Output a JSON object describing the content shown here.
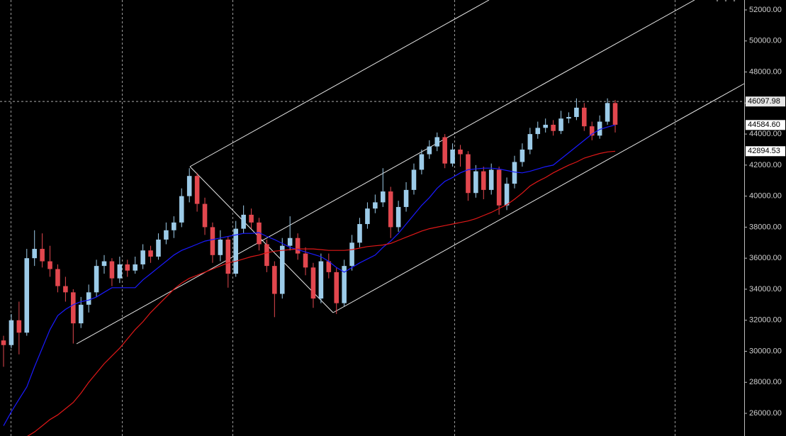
{
  "chart_data": {
    "type": "candlestick",
    "ylim": [
      24540,
      52640
    ],
    "yticks": [
      {
        "value": 26000,
        "label": "26000.00"
      },
      {
        "value": 28000,
        "label": "28000.00"
      },
      {
        "value": 30000,
        "label": "30000.00"
      },
      {
        "value": 32000,
        "label": "32000.00"
      },
      {
        "value": 34000,
        "label": "34000.00"
      },
      {
        "value": 36000,
        "label": "36000.00"
      },
      {
        "value": 38000,
        "label": "38000.00"
      },
      {
        "value": 40000,
        "label": "40000.00"
      },
      {
        "value": 42000,
        "label": "42000.00"
      },
      {
        "value": 44000,
        "label": "44000.00"
      },
      {
        "value": 46000,
        "label": "46000.00"
      },
      {
        "value": 48000,
        "label": "48000.00"
      },
      {
        "value": 50000,
        "label": "50000.00"
      },
      {
        "value": 52000,
        "label": "52000.00"
      }
    ],
    "up_color": "#9ccbe8",
    "down_color": "#e2474e",
    "candles": [
      [
        30700,
        31000,
        29000,
        30400
      ],
      [
        30400,
        32400,
        30200,
        32000
      ],
      [
        32000,
        33200,
        29800,
        31200
      ],
      [
        31200,
        36600,
        31000,
        36000
      ],
      [
        36000,
        37800,
        35500,
        36600
      ],
      [
        36600,
        37600,
        35400,
        35800
      ],
      [
        35800,
        36800,
        34800,
        35300
      ],
      [
        35300,
        35600,
        33800,
        34200
      ],
      [
        34200,
        34800,
        33200,
        33800
      ],
      [
        33800,
        34000,
        30500,
        31800
      ],
      [
        31800,
        33500,
        31500,
        33000
      ],
      [
        33000,
        34300,
        32500,
        33800
      ],
      [
        33800,
        35900,
        33500,
        35500
      ],
      [
        35500,
        36200,
        35000,
        35800
      ],
      [
        35800,
        36000,
        34200,
        34700
      ],
      [
        34700,
        36100,
        34400,
        35600
      ],
      [
        35600,
        35900,
        34800,
        35200
      ],
      [
        35200,
        36100,
        35000,
        35600
      ],
      [
        35600,
        36900,
        35300,
        36500
      ],
      [
        36500,
        36800,
        35700,
        36100
      ],
      [
        36100,
        37600,
        35900,
        37200
      ],
      [
        37200,
        38300,
        36900,
        37800
      ],
      [
        37800,
        38700,
        37300,
        38300
      ],
      [
        38300,
        40500,
        38000,
        40000
      ],
      [
        40000,
        41800,
        39600,
        41300
      ],
      [
        41300,
        41500,
        39000,
        39500
      ],
      [
        39500,
        39900,
        37500,
        38000
      ],
      [
        38000,
        38300,
        35700,
        36200
      ],
      [
        36200,
        37800,
        35800,
        37200
      ],
      [
        37200,
        37400,
        34100,
        35000
      ],
      [
        35000,
        38400,
        34800,
        37900
      ],
      [
        37900,
        39400,
        37600,
        38800
      ],
      [
        38800,
        39200,
        37900,
        38300
      ],
      [
        38300,
        38600,
        36500,
        36900
      ],
      [
        36900,
        37200,
        35100,
        35500
      ],
      [
        35500,
        35800,
        32200,
        33700
      ],
      [
        33700,
        37300,
        33400,
        36800
      ],
      [
        36800,
        38700,
        36500,
        37300
      ],
      [
        37300,
        37600,
        35900,
        36300
      ],
      [
        36300,
        36700,
        34900,
        35400
      ],
      [
        35400,
        35700,
        32800,
        33400
      ],
      [
        33400,
        36300,
        33100,
        35800
      ],
      [
        35800,
        36300,
        34700,
        35100
      ],
      [
        35100,
        35400,
        32400,
        33100
      ],
      [
        33100,
        35900,
        32900,
        35500
      ],
      [
        35500,
        37500,
        35200,
        37000
      ],
      [
        37000,
        38600,
        36700,
        38200
      ],
      [
        38200,
        39600,
        37900,
        39200
      ],
      [
        39200,
        40100,
        38900,
        39600
      ],
      [
        39600,
        41800,
        39300,
        40300
      ],
      [
        40300,
        40600,
        37300,
        38000
      ],
      [
        38000,
        39700,
        37700,
        39300
      ],
      [
        39300,
        40900,
        39000,
        40400
      ],
      [
        40400,
        42100,
        40100,
        41700
      ],
      [
        41700,
        43000,
        41400,
        42700
      ],
      [
        42700,
        43600,
        42400,
        43200
      ],
      [
        43200,
        44100,
        42900,
        43800
      ],
      [
        43800,
        44000,
        41800,
        42100
      ],
      [
        42100,
        43400,
        41900,
        43000
      ],
      [
        43000,
        43300,
        41900,
        42700
      ],
      [
        42700,
        42900,
        39700,
        40200
      ],
      [
        40200,
        42000,
        39900,
        41600
      ],
      [
        41600,
        41900,
        39800,
        40400
      ],
      [
        40400,
        42100,
        40100,
        41700
      ],
      [
        41700,
        41900,
        38800,
        39400
      ],
      [
        39400,
        41200,
        39100,
        40800
      ],
      [
        40800,
        42600,
        40500,
        42200
      ],
      [
        42200,
        43400,
        41900,
        43000
      ],
      [
        43000,
        44400,
        42700,
        44000
      ],
      [
        44000,
        44800,
        43700,
        44400
      ],
      [
        44400,
        45000,
        44100,
        44600
      ],
      [
        44600,
        44900,
        43900,
        44200
      ],
      [
        44200,
        45500,
        44000,
        45000
      ],
      [
        45000,
        45400,
        44700,
        45100
      ],
      [
        45100,
        46300,
        44900,
        45700
      ],
      [
        45700,
        46000,
        44200,
        44500
      ],
      [
        44500,
        44800,
        43600,
        43900
      ],
      [
        43900,
        45200,
        43700,
        44800
      ],
      [
        44800,
        46300,
        44600,
        46000
      ],
      [
        46000,
        46200,
        44100,
        44600
      ]
    ],
    "series": [
      {
        "color": "#1a1aff",
        "values": [
          25200,
          26100,
          26900,
          27700,
          29000,
          30200,
          31400,
          32300,
          32700,
          33000,
          33200,
          33300,
          33500,
          33800,
          34100,
          34100,
          34100,
          34100,
          34600,
          35000,
          35400,
          35800,
          36200,
          36500,
          36700,
          36900,
          37100,
          37200,
          37300,
          37400,
          37500,
          37600,
          37600,
          37650,
          37400,
          37200,
          36950,
          36700,
          36550,
          36400,
          36250,
          36100,
          35800,
          35400,
          35100,
          35400,
          35700,
          35950,
          36200,
          36700,
          37100,
          37600,
          38200,
          38800,
          39400,
          39900,
          40500,
          40950,
          41200,
          41500,
          41700,
          41750,
          41800,
          41800,
          41750,
          41650,
          41550,
          41500,
          41600,
          41750,
          41900,
          42000,
          42400,
          42800,
          43200,
          43600,
          44000,
          44300,
          44450,
          44584.6
        ],
        "end_label": {
          "value": 44584.6,
          "label": "44584.60"
        }
      },
      {
        "color": "#e01818",
        "values": [
          null,
          null,
          null,
          24500,
          24800,
          25200,
          25600,
          25900,
          26300,
          26700,
          27300,
          28000,
          28600,
          29200,
          29700,
          30200,
          30800,
          31400,
          31900,
          32500,
          33000,
          33500,
          34000,
          34400,
          34700,
          34900,
          35100,
          35300,
          35500,
          35700,
          35800,
          35950,
          36100,
          36200,
          36350,
          36450,
          36500,
          36550,
          36600,
          36600,
          36600,
          36550,
          36500,
          36500,
          36500,
          36550,
          36650,
          36750,
          36800,
          36850,
          36950,
          37150,
          37350,
          37550,
          37750,
          37900,
          38000,
          38100,
          38200,
          38300,
          38400,
          38550,
          38750,
          38950,
          39200,
          39450,
          39800,
          40200,
          40650,
          40950,
          41200,
          41500,
          41750,
          42000,
          42200,
          42450,
          42600,
          42750,
          42850,
          42894.53
        ],
        "end_label": {
          "value": 42894.53,
          "label": "42894.53"
        }
      }
    ],
    "crosshair": {
      "value": 46097.98,
      "label": "46097.98"
    }
  }
}
